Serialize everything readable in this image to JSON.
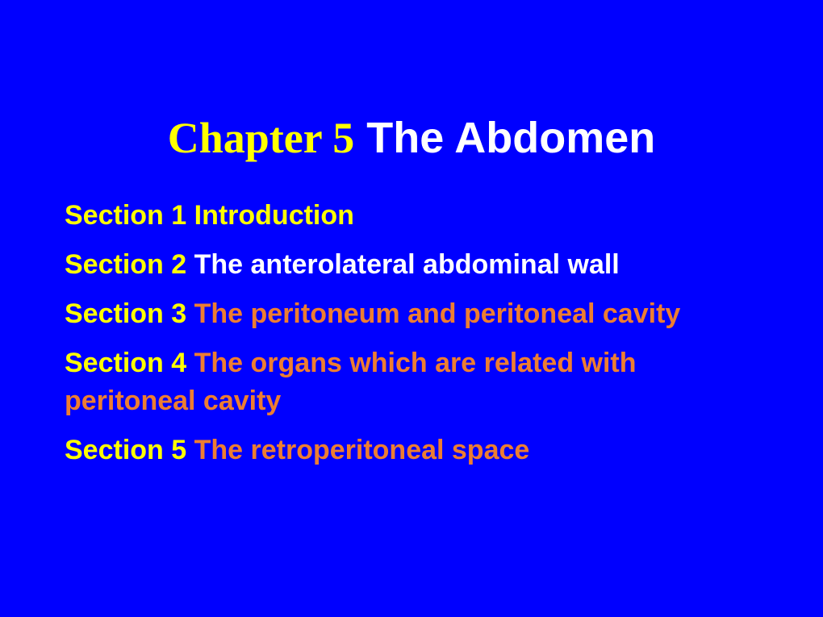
{
  "background_color": "#0000ff",
  "title": {
    "chapter_text": "Chapter 5",
    "subject_text": "The Abdomen",
    "chapter_color": "#ffff00",
    "subject_color": "#ffffff",
    "fontsize": 54
  },
  "sections": [
    {
      "label": "Section 1",
      "label_color": "#ffff00",
      "desc": "  Introduction",
      "desc_color": "#ffff00"
    },
    {
      "label": "Section 2",
      "label_color": "#ffff00",
      "desc": " The anterolateral abdominal wall",
      "desc_color": "#ffffff"
    },
    {
      "label": "Section 3",
      "label_color": "#ffff00",
      "desc": " The peritoneum and peritoneal cavity",
      "desc_color": "#ed7d31"
    },
    {
      "label": "Section 4",
      "label_color": "#ffff00",
      "desc": " The organs which are related with peritoneal cavity",
      "desc_color": "#ed7d31"
    },
    {
      "label": "Section 5",
      "label_color": "#ffff00",
      "desc": "  The retroperitoneal space",
      "desc_color": "#ed7d31"
    }
  ],
  "section_fontsize": 34
}
